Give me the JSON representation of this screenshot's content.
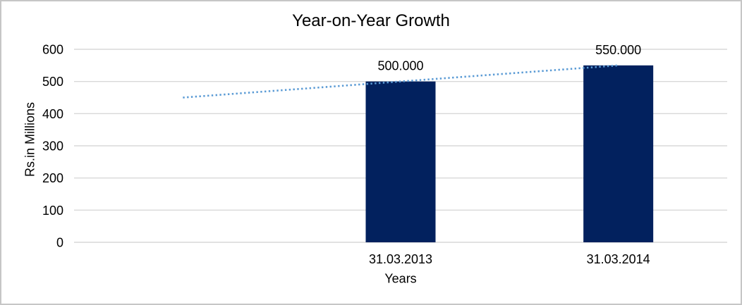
{
  "chart_data": {
    "type": "bar",
    "title": "Year-on-Year Growth",
    "xlabel": "Years",
    "ylabel": "Rs.in Millions",
    "categories": [
      "",
      "31.03.2013",
      "31.03.2014"
    ],
    "series": [
      {
        "name": "Growth bars",
        "type": "bar",
        "color": "#02215e",
        "values": [
          null,
          500,
          550
        ],
        "data_labels": [
          "",
          "500.000",
          "550.000"
        ]
      },
      {
        "name": "Trend",
        "type": "dotted-line",
        "color": "#5b9bd5",
        "values": [
          450,
          500,
          550
        ]
      }
    ],
    "ylim": [
      0,
      600
    ],
    "yticks": [
      0,
      100,
      200,
      300,
      400,
      500,
      600
    ],
    "grid": true,
    "gridline_color": "#d9d9d9",
    "legend": "none",
    "background_color": "#ffffff",
    "border_color": "#c6c6c6"
  }
}
